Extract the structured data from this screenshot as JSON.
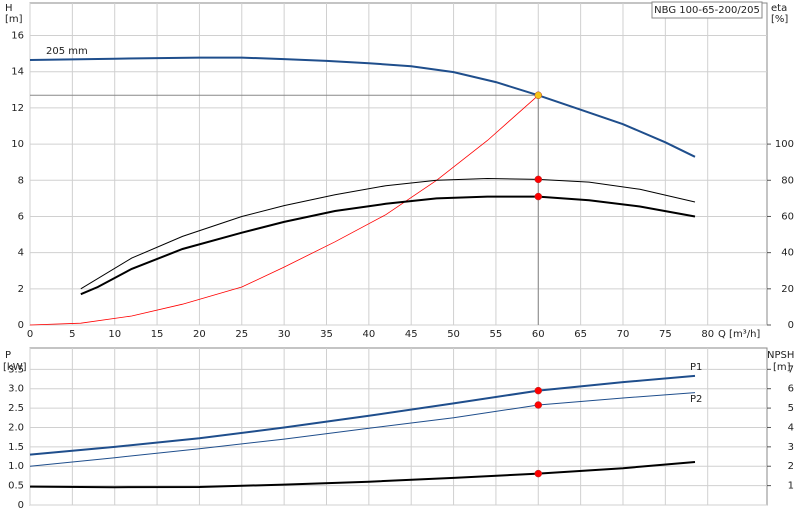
{
  "chart_data": [
    {
      "type": "line",
      "title": "NBG 100-65-200/205",
      "y_label": "H",
      "y_unit": "[m]",
      "y2_label": "eta",
      "y2_unit": "[%]",
      "x_label": "Q [m³/h]",
      "annotation": "205 mm",
      "xlim": [
        0,
        87
      ],
      "xticks": [
        0,
        5,
        10,
        15,
        20,
        25,
        30,
        35,
        40,
        45,
        50,
        55,
        60,
        65,
        70,
        75,
        80
      ],
      "xtick_labels": true,
      "ylim": [
        0,
        17.8
      ],
      "yticks": [
        0,
        2,
        4,
        6,
        8,
        10,
        12,
        14,
        16
      ],
      "y2lim": [
        0,
        178
      ],
      "y2ticks": [
        0,
        20,
        40,
        60,
        80,
        100
      ],
      "grid": true,
      "series": [
        {
          "color": "#1f4e8c",
          "width": 2,
          "x": [
            0,
            10,
            20,
            25,
            30,
            35,
            40,
            45,
            50,
            55,
            60,
            65,
            70,
            75,
            78.5
          ],
          "values": [
            14.65,
            14.72,
            14.78,
            14.78,
            14.7,
            14.6,
            14.47,
            14.3,
            13.98,
            13.43,
            12.7,
            11.9,
            11.1,
            10.1,
            9.3
          ]
        },
        {
          "color": "#ff0000",
          "width": 0.8,
          "x": [
            0,
            6,
            12,
            18,
            25,
            30,
            36,
            42,
            48,
            54,
            60
          ],
          "values": [
            0,
            0.1,
            0.5,
            1.15,
            2.1,
            3.2,
            4.6,
            6.1,
            8.0,
            10.2,
            12.7
          ]
        },
        {
          "color": "#000000",
          "width": 1,
          "axis": "y2",
          "x": [
            6,
            12,
            18,
            25,
            30,
            36,
            42,
            48,
            54,
            60,
            66,
            72,
            78.5
          ],
          "values": [
            20,
            37,
            49,
            60,
            66,
            72,
            77,
            80,
            81,
            80.5,
            79,
            75,
            68
          ]
        },
        {
          "color": "#000000",
          "width": 2,
          "axis": "y2",
          "x": [
            6,
            8,
            12,
            18,
            25,
            30,
            36,
            42,
            48,
            54,
            60,
            66,
            72,
            78.5
          ],
          "values": [
            17,
            21,
            31,
            42,
            51,
            57,
            63,
            67,
            70,
            71,
            71,
            69,
            65.5,
            60
          ]
        }
      ],
      "guide": {
        "x": 60,
        "y": 12.7
      },
      "points": [
        {
          "x": 60,
          "y": 12.7,
          "color": "#f5c518"
        },
        {
          "x": 60,
          "y": 80.5,
          "axis": "y2",
          "color": "#ff0000"
        },
        {
          "x": 60,
          "y": 71,
          "axis": "y2",
          "color": "#ff0000"
        }
      ]
    },
    {
      "type": "line",
      "y_label": "P",
      "y_unit": "[kW]",
      "y2_label": "NPSH",
      "y2_unit": "[m]",
      "xlim": [
        0,
        87
      ],
      "xticks": [
        0,
        5,
        10,
        15,
        20,
        25,
        30,
        35,
        40,
        45,
        50,
        55,
        60,
        65,
        70,
        75,
        80
      ],
      "xtick_labels": false,
      "ylim": [
        0,
        4.05
      ],
      "yticks": [
        0,
        0.5,
        {
          "value": 1,
          "label": "1.0"
        },
        1.5,
        {
          "value": 2,
          "label": "2.0"
        },
        2.5,
        {
          "value": 3,
          "label": "3.0"
        },
        3.5
      ],
      "y2lim": [
        0,
        8.1
      ],
      "y2ticks": [
        1,
        2,
        3,
        4,
        5,
        6,
        7
      ],
      "grid": true,
      "series": [
        {
          "name": "P1",
          "color": "#1f4e8c",
          "width": 2,
          "x": [
            0,
            10,
            20,
            30,
            40,
            50,
            60,
            70,
            78.5
          ],
          "values": [
            1.3,
            1.5,
            1.72,
            2.0,
            2.3,
            2.62,
            2.95,
            3.17,
            3.33
          ]
        },
        {
          "name": "P2",
          "color": "#1f4e8c",
          "width": 1,
          "x": [
            0,
            10,
            20,
            30,
            40,
            50,
            60,
            70,
            78.5
          ],
          "values": [
            1.0,
            1.22,
            1.45,
            1.7,
            1.98,
            2.25,
            2.58,
            2.76,
            2.9
          ]
        },
        {
          "color": "#000000",
          "width": 2,
          "axis": "y2",
          "x": [
            0,
            10,
            20,
            30,
            40,
            50,
            60,
            70,
            78.5
          ],
          "values": [
            0.95,
            0.92,
            0.93,
            1.05,
            1.2,
            1.4,
            1.62,
            1.9,
            2.22
          ]
        }
      ],
      "points": [
        {
          "x": 60,
          "y": 2.95,
          "color": "#ff0000"
        },
        {
          "x": 60,
          "y": 2.58,
          "color": "#ff0000"
        },
        {
          "x": 60,
          "y": 1.62,
          "axis": "y2",
          "color": "#ff0000"
        }
      ]
    }
  ]
}
